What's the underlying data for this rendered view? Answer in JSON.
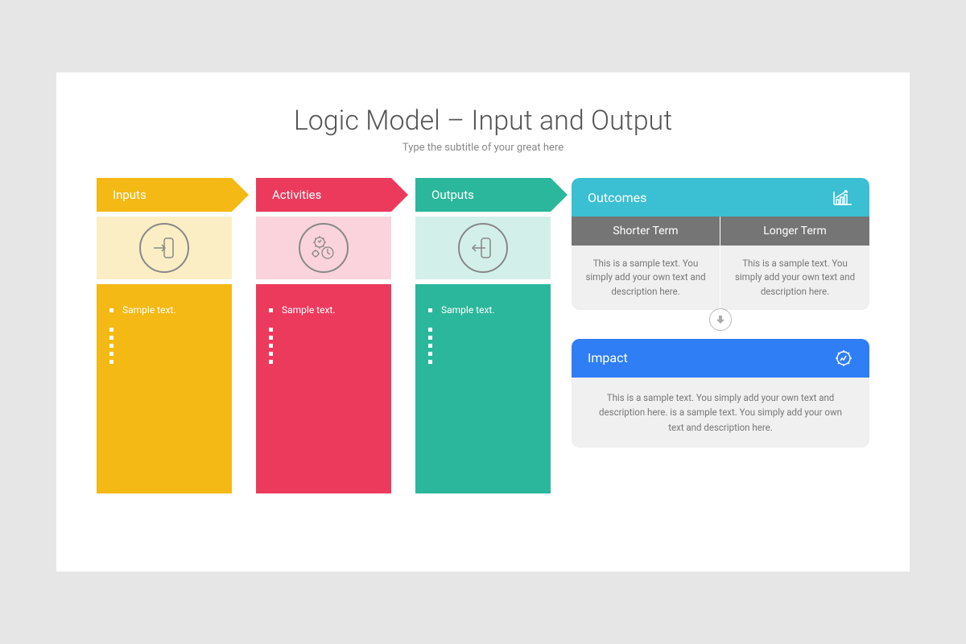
{
  "title": "Logic Model – Input and Output",
  "subtitle": "Type the subtitle of your great here",
  "page_background": "#e6e6e6",
  "slide_background": "#ffffff",
  "icon_stroke": "#888888",
  "columns": [
    {
      "label": "Inputs",
      "color": "#f5b915",
      "icon_bg": "#fbeec5",
      "items": [
        "Sample text.",
        "",
        "",
        "",
        "",
        ""
      ]
    },
    {
      "label": "Activities",
      "color": "#ec3a5d",
      "icon_bg": "#fad3dc",
      "items": [
        "Sample text.",
        "",
        "",
        "",
        "",
        ""
      ]
    },
    {
      "label": "Outputs",
      "color": "#2bb79b",
      "icon_bg": "#d3efe9",
      "items": [
        "Sample text.",
        "",
        "",
        "",
        "",
        ""
      ]
    }
  ],
  "outcomes": {
    "label": "Outcomes",
    "color": "#3bbfd3",
    "sub_header_color": "#757575",
    "body_bg": "#f0f0f0",
    "shorter": {
      "label": "Shorter Term",
      "text": "This is a sample text. You simply add your own text and description here."
    },
    "longer": {
      "label": "Longer Term",
      "text": "This is a sample text. You simply add your own text and description here."
    }
  },
  "impact": {
    "label": "Impact",
    "color": "#2f7ef6",
    "body_bg": "#f0f0f0",
    "text": "This is a sample text. You simply add your own text and description here. is a sample text. You simply add your own text and description here."
  }
}
